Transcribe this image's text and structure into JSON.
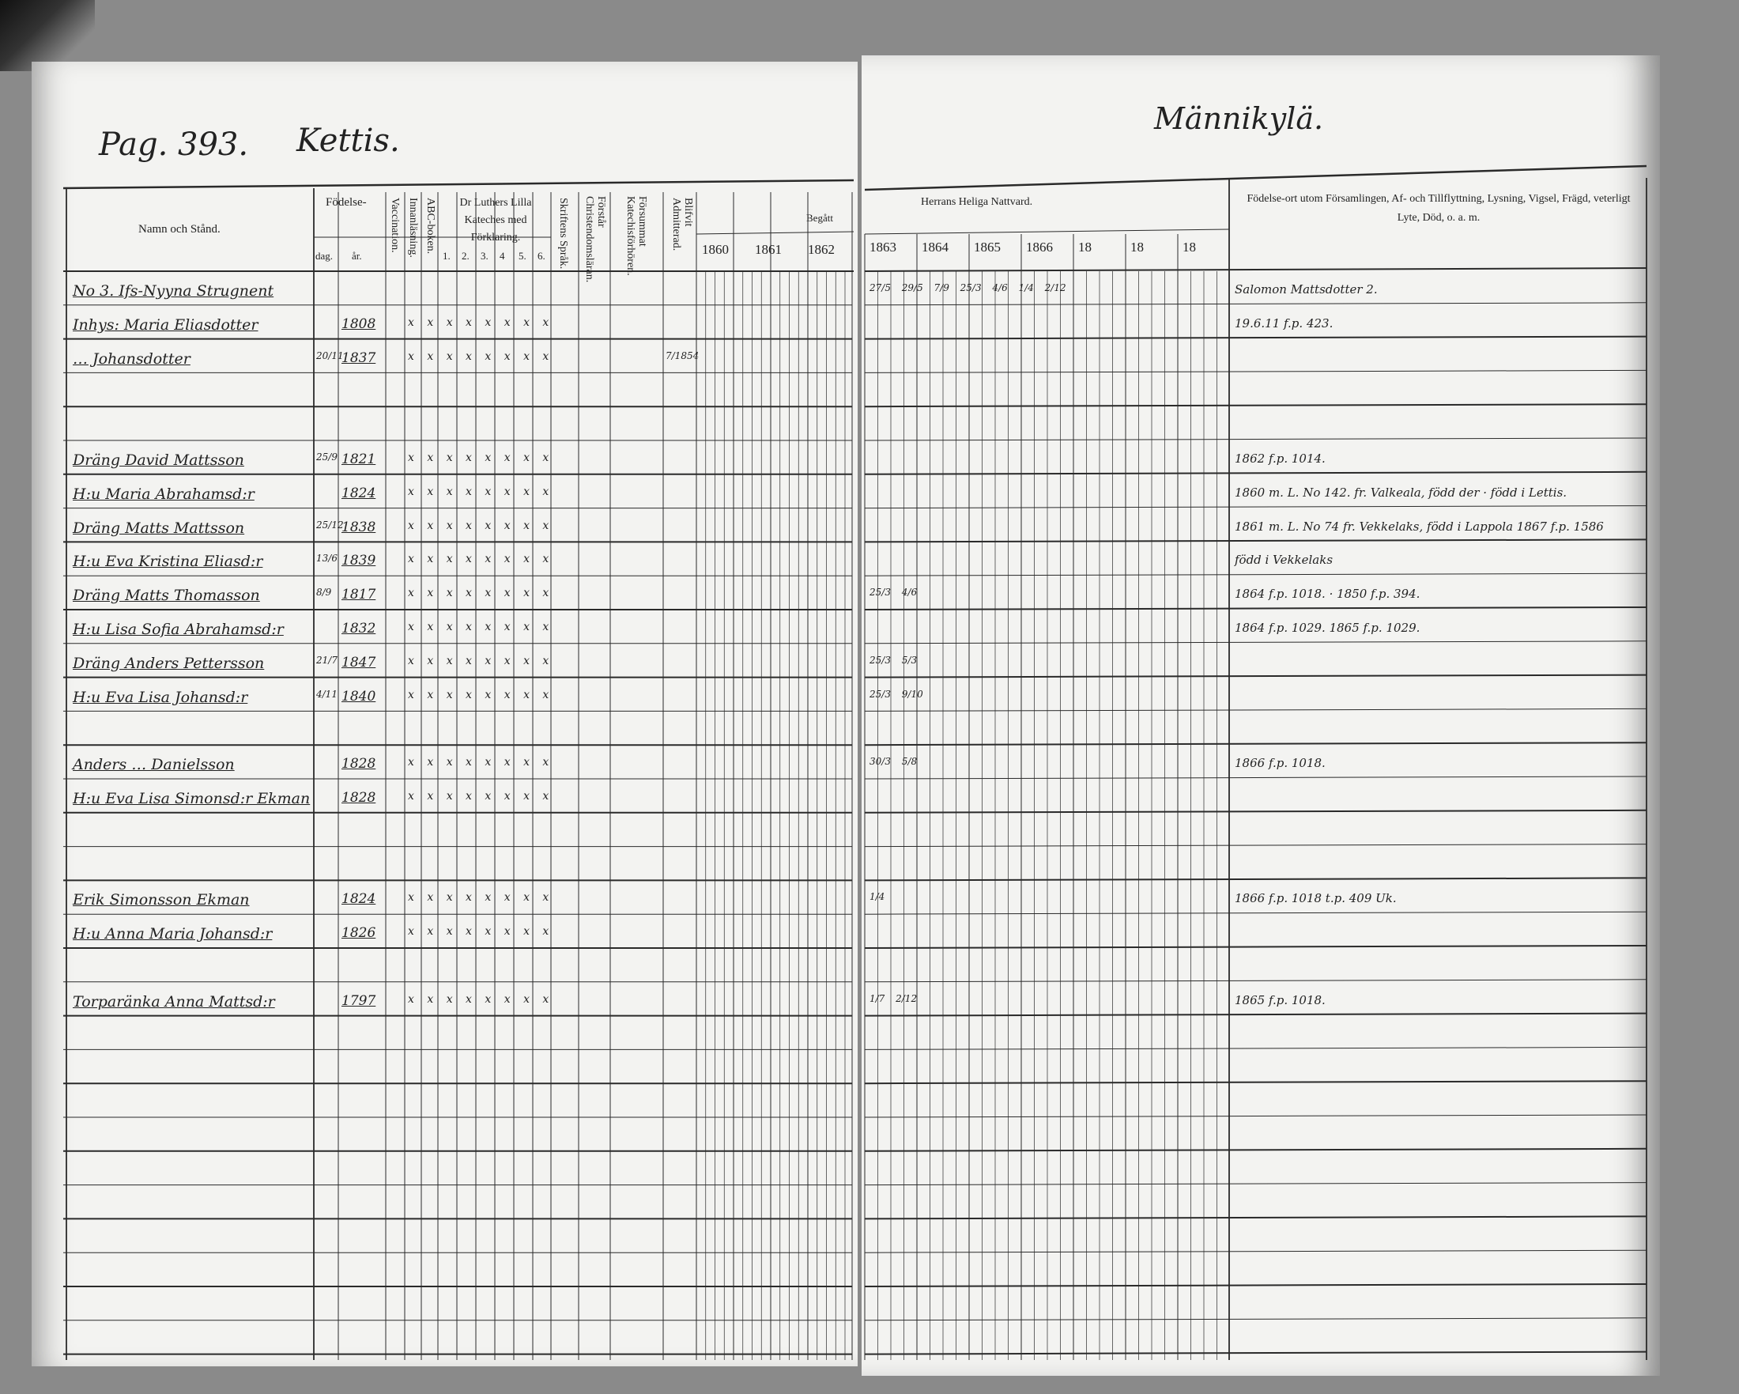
{
  "left_page": {
    "page_number": "Pag. 393.",
    "village": "Kettis.",
    "headers": {
      "name": "Namn och Stånd.",
      "birth": "Födelse-",
      "day": "dag.",
      "year": "år.",
      "vaccination": "Vaccination.",
      "reading": "Innanläsning.",
      "abc": "ABC-boken.",
      "luther": "Dr Luthers Lilla Kateches med Förklaring.",
      "luther_parts": [
        "1.",
        "2.",
        "3.",
        "4",
        "5.",
        "6."
      ],
      "scripture": "Skriftens Språk.",
      "understands": "Förstår Christendomsläran.",
      "missed": "Försummat Katechisförhören.",
      "admitted": "Blifvit Admitterad.",
      "partaken": "Begått",
      "years": [
        "1860",
        "1861",
        "1862"
      ]
    }
  },
  "right_page": {
    "village": "Männikylä.",
    "headers": {
      "communion": "Herrans Heliga Nattvard.",
      "years": [
        "1863",
        "1864",
        "1865",
        "1866",
        "18",
        "18",
        "18"
      ],
      "notes": "Födelse-ort utom Församlingen, Af- och Tillflyttning, Lysning, Vigsel, Frägd, veterligt Lyte, Död, o. a. m."
    }
  },
  "rows": [
    {
      "name": "No 3. Ifs-Nyyna Strugnent",
      "day": "",
      "year": "",
      "marks": "",
      "admitted": "",
      "communion": "27/5  29/5  7/9  25/3  4/6  1/4 2/12",
      "notes": "Salomon Mattsdotter 2."
    },
    {
      "name": "Inhys: Maria Eliasdotter",
      "day": "",
      "year": "1808",
      "marks": "x x x x x x x x",
      "admitted": "",
      "communion": "",
      "notes": "19.6.11 f.p. 423."
    },
    {
      "name": "… Johansdotter",
      "day": "20/11",
      "year": "1837",
      "marks": "x x x x x x x x",
      "admitted": "7/1854",
      "communion": "",
      "notes": ""
    },
    {},
    {},
    {
      "name": "Dräng David Mattsson",
      "day": "25/9",
      "year": "1821",
      "marks": "x x x x x x x x",
      "admitted": "",
      "communion": "",
      "notes": "1862 f.p. 1014."
    },
    {
      "name": "H:u Maria Abrahamsd:r",
      "day": "",
      "year": "1824",
      "marks": "x x x x x x x x",
      "admitted": "",
      "communion": "",
      "notes": "1860 m. L. No 142. fr. Valkeala, född der · född i Lettis."
    },
    {
      "name": "Dräng Matts Mattsson",
      "day": "25/12",
      "year": "1838",
      "marks": "x x x x x x x x",
      "admitted": "",
      "communion": "",
      "notes": "1861 m. L. No 74 fr. Vekkelaks, född i Lappola 1867 f.p. 1586"
    },
    {
      "name": "H:u Eva Kristina Eliasd:r",
      "day": "13/6",
      "year": "1839",
      "marks": "x x x x x x x x",
      "admitted": "",
      "communion": "",
      "notes": "född i Vekkelaks"
    },
    {
      "name": "Dräng Matts Thomasson",
      "day": "8/9",
      "year": "1817",
      "marks": "x x x x x x x x",
      "admitted": "",
      "communion": "25/3  4/6",
      "notes": "1864 f.p. 1018. · 1850 f.p. 394."
    },
    {
      "name": "H:u Lisa Sofia Abrahamsd:r",
      "day": "",
      "year": "1832",
      "marks": "x x x x x x x x",
      "admitted": "",
      "communion": "",
      "notes": "1864 f.p. 1029. 1865 f.p. 1029."
    },
    {
      "name": "Dräng Anders Pettersson",
      "day": "21/7",
      "year": "1847",
      "marks": "x x x x x x x x",
      "admitted": "",
      "communion": "25/3  5/3",
      "notes": ""
    },
    {
      "name": "H:u Eva Lisa Johansd:r",
      "day": "4/11",
      "year": "1840",
      "marks": "x x x x x x x x",
      "admitted": "",
      "communion": "25/3  9/10",
      "notes": ""
    },
    {},
    {
      "name": "Anders … Danielsson",
      "day": "",
      "year": "1828",
      "marks": "x x x x x x x x",
      "admitted": "",
      "communion": "30/3  5/8",
      "notes": "1866 f.p. 1018."
    },
    {
      "name": "H:u Eva Lisa Simonsd:r Ekman",
      "day": "",
      "year": "1828",
      "marks": "x x x x x x x x",
      "admitted": "",
      "communion": "",
      "notes": ""
    },
    {},
    {},
    {
      "name": "Erik Simonsson Ekman",
      "day": "",
      "year": "1824",
      "marks": "x x x x x x x x",
      "admitted": "",
      "communion": "1/4",
      "notes": "1866 f.p. 1018   t.p. 409 Uk."
    },
    {
      "name": "H:u Anna Maria Johansd:r",
      "day": "",
      "year": "1826",
      "marks": "x x x x x x x x",
      "admitted": "",
      "communion": "",
      "notes": ""
    },
    {},
    {
      "name": "Torparänka Anna Mattsd:r",
      "day": "",
      "year": "1797",
      "marks": "x x x x x x x x",
      "admitted": "",
      "communion": "1/7  2/12",
      "notes": "1865 f.p. 1018."
    },
    {},
    {},
    {},
    {},
    {},
    {},
    {},
    {},
    {},
    {}
  ]
}
